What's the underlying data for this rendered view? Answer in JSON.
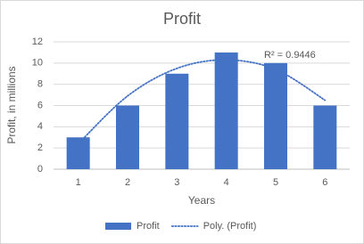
{
  "chart_data": {
    "type": "bar",
    "title": "Profit",
    "x_label": "Years",
    "y_label": "Profit, in millions",
    "categories": [
      "1",
      "2",
      "3",
      "4",
      "5",
      "6"
    ],
    "series": [
      {
        "name": "Profit",
        "type": "bar",
        "color": "#4472c4",
        "values": [
          3,
          6,
          9,
          11,
          10,
          6
        ]
      },
      {
        "name": "Poly. (Profit)",
        "type": "line",
        "color": "#4472c4",
        "dash": "dotted",
        "values": [
          2.4,
          6.9,
          9.5,
          10.3,
          9.4,
          6.5
        ]
      }
    ],
    "annotation": "R² = 0.9446",
    "ylim": [
      0,
      12
    ],
    "yticks": [
      0,
      2,
      4,
      6,
      8,
      10,
      12
    ],
    "grid": true,
    "legend": "bottom"
  }
}
